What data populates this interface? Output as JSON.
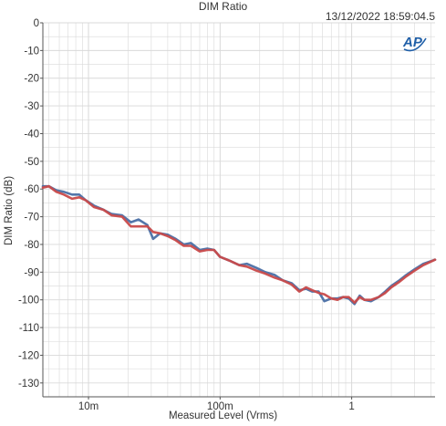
{
  "header": {
    "title": "DIM Ratio",
    "timestamp": "13/12/2022 18:59:04.5",
    "logo_text": "AP"
  },
  "colors": {
    "series_blue": "#4a6fa5",
    "series_red": "#c94a4a",
    "grid": "#d9d9d9",
    "axis": "#555555",
    "logo": "#1f5fa8"
  },
  "chart_data": {
    "type": "line",
    "title": "DIM Ratio",
    "xlabel": "Measured Level (Vrms)",
    "ylabel": "DIM Ratio (dB)",
    "x_scale": "log",
    "xlim": [
      0.0045,
      4.3
    ],
    "ylim": [
      -135,
      0
    ],
    "grid": true,
    "legend": "none",
    "x_ticks": [
      {
        "value": 0.01,
        "label": "10m"
      },
      {
        "value": 0.1,
        "label": "100m"
      },
      {
        "value": 1,
        "label": "1"
      }
    ],
    "y_ticks": [
      0,
      -10,
      -20,
      -30,
      -40,
      -50,
      -60,
      -70,
      -80,
      -90,
      -100,
      -110,
      -120,
      -130
    ],
    "series": [
      {
        "color": "#4a6fa5",
        "x": [
          0.0045,
          0.005,
          0.0057,
          0.0065,
          0.0075,
          0.0085,
          0.0095,
          0.011,
          0.013,
          0.015,
          0.018,
          0.021,
          0.024,
          0.028,
          0.031,
          0.035,
          0.04,
          0.046,
          0.053,
          0.06,
          0.07,
          0.08,
          0.09,
          0.1,
          0.12,
          0.14,
          0.16,
          0.19,
          0.22,
          0.26,
          0.3,
          0.35,
          0.4,
          0.45,
          0.5,
          0.56,
          0.62,
          0.7,
          0.78,
          0.86,
          0.95,
          1.05,
          1.15,
          1.25,
          1.4,
          1.6,
          1.8,
          2.0,
          2.3,
          2.6,
          3.0,
          3.5,
          4.3
        ],
        "y": [
          -59,
          -59,
          -60.5,
          -61,
          -62,
          -62,
          -64,
          -66,
          -67.5,
          -69,
          -69.5,
          -72,
          -71,
          -73,
          -78,
          -76,
          -76.5,
          -78,
          -80,
          -79.5,
          -82,
          -81.5,
          -82,
          -84.5,
          -86,
          -87.5,
          -87,
          -88.5,
          -90,
          -91,
          -93,
          -94,
          -96.5,
          -96,
          -97,
          -97,
          -100.5,
          -99.5,
          -99.5,
          -99,
          -99.5,
          -101.5,
          -98.5,
          -100,
          -100.5,
          -99,
          -97,
          -95,
          -93,
          -91,
          -89,
          -87,
          -85.5
        ]
      },
      {
        "color": "#c94a4a",
        "x": [
          0.0045,
          0.005,
          0.0057,
          0.0065,
          0.0075,
          0.0085,
          0.0095,
          0.011,
          0.013,
          0.015,
          0.018,
          0.021,
          0.024,
          0.028,
          0.031,
          0.035,
          0.04,
          0.046,
          0.053,
          0.06,
          0.07,
          0.08,
          0.09,
          0.1,
          0.12,
          0.14,
          0.16,
          0.19,
          0.22,
          0.26,
          0.3,
          0.35,
          0.4,
          0.45,
          0.5,
          0.56,
          0.62,
          0.7,
          0.78,
          0.86,
          0.95,
          1.05,
          1.15,
          1.25,
          1.4,
          1.6,
          1.8,
          2.0,
          2.3,
          2.6,
          3.0,
          3.5,
          4.3
        ],
        "y": [
          -59.5,
          -59,
          -61,
          -62,
          -63.5,
          -63,
          -64,
          -66.5,
          -67.5,
          -69.5,
          -70,
          -73.5,
          -73.5,
          -73.5,
          -75.5,
          -76,
          -77,
          -78.5,
          -80.5,
          -80.5,
          -82.5,
          -82,
          -82,
          -84.5,
          -86,
          -87.5,
          -88,
          -89.5,
          -90.5,
          -92,
          -93,
          -94.5,
          -97,
          -95.5,
          -96.5,
          -97.5,
          -98,
          -99.5,
          -100,
          -99,
          -99,
          -101,
          -99,
          -100,
          -100,
          -99,
          -97.5,
          -95.5,
          -93.5,
          -91.5,
          -89.5,
          -87.5,
          -85.5
        ]
      }
    ]
  }
}
